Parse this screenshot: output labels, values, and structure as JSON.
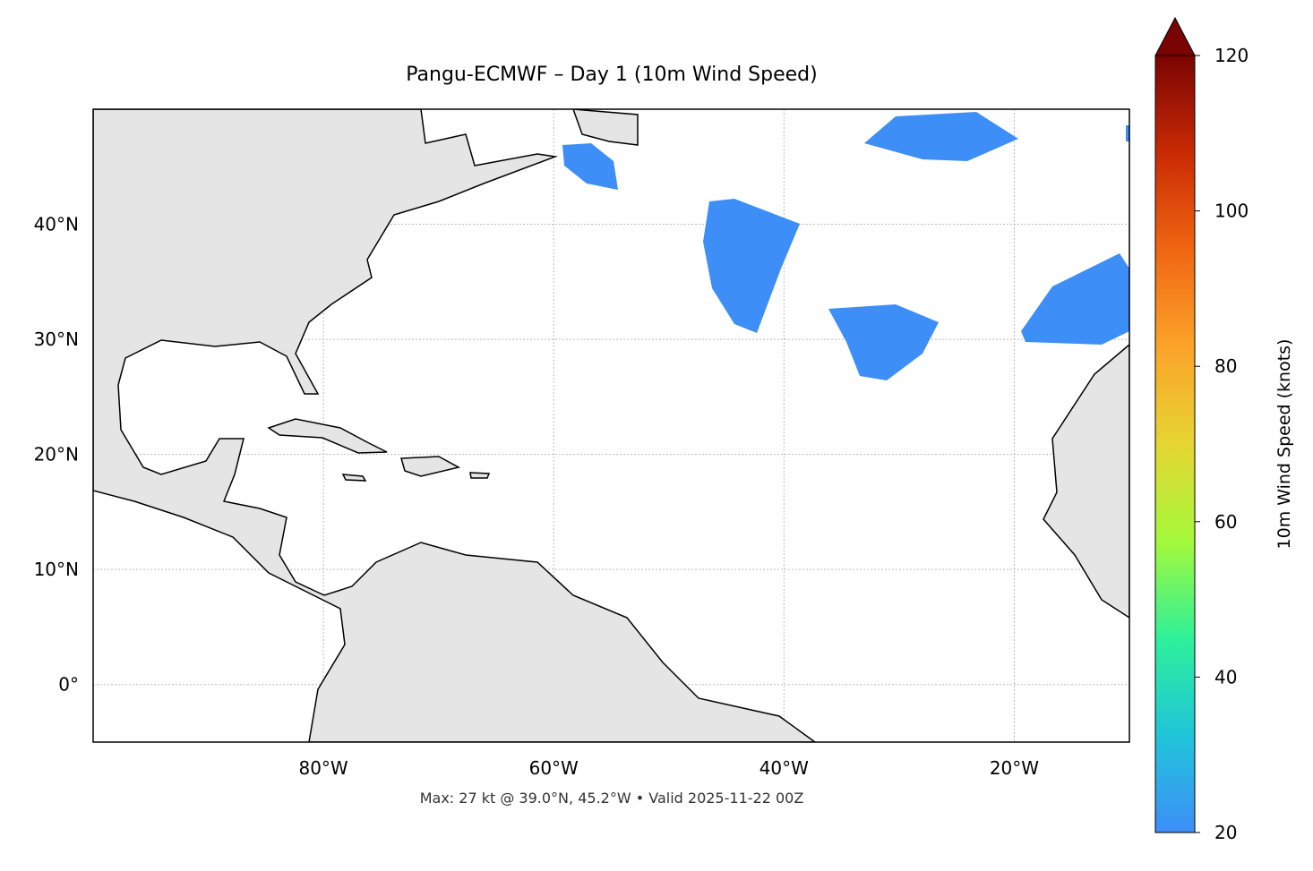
{
  "title": "Pangu-ECMWF – Day 1 (10m Wind Speed)",
  "map": {
    "xlim": [
      -100,
      -10
    ],
    "ylim": [
      -5,
      50
    ],
    "xticks": [
      {
        "value": -80,
        "label": "80°W"
      },
      {
        "value": -60,
        "label": "60°W"
      },
      {
        "value": -40,
        "label": "40°W"
      },
      {
        "value": -20,
        "label": "20°W"
      }
    ],
    "yticks": [
      {
        "value": 0,
        "label": "0°"
      },
      {
        "value": 10,
        "label": "10°N"
      },
      {
        "value": 20,
        "label": "20°N"
      },
      {
        "value": 30,
        "label": "30°N"
      },
      {
        "value": 40,
        "label": "40°N"
      }
    ],
    "grid": true
  },
  "colorbar": {
    "label": "10m Wind Speed (knots)",
    "lim": [
      20,
      120
    ],
    "ticks": [
      20,
      40,
      60,
      80,
      100,
      120
    ],
    "colors": [
      "#3e8ef8",
      "#1fc5d9",
      "#2ef19a",
      "#a4f93a",
      "#e6d532",
      "#fca32a",
      "#f06612",
      "#c92a04",
      "#7a0403"
    ]
  },
  "footer": "Max: 27 kt @ 39.0°N, 45.2°W • Valid 2025-11-22 00Z"
}
